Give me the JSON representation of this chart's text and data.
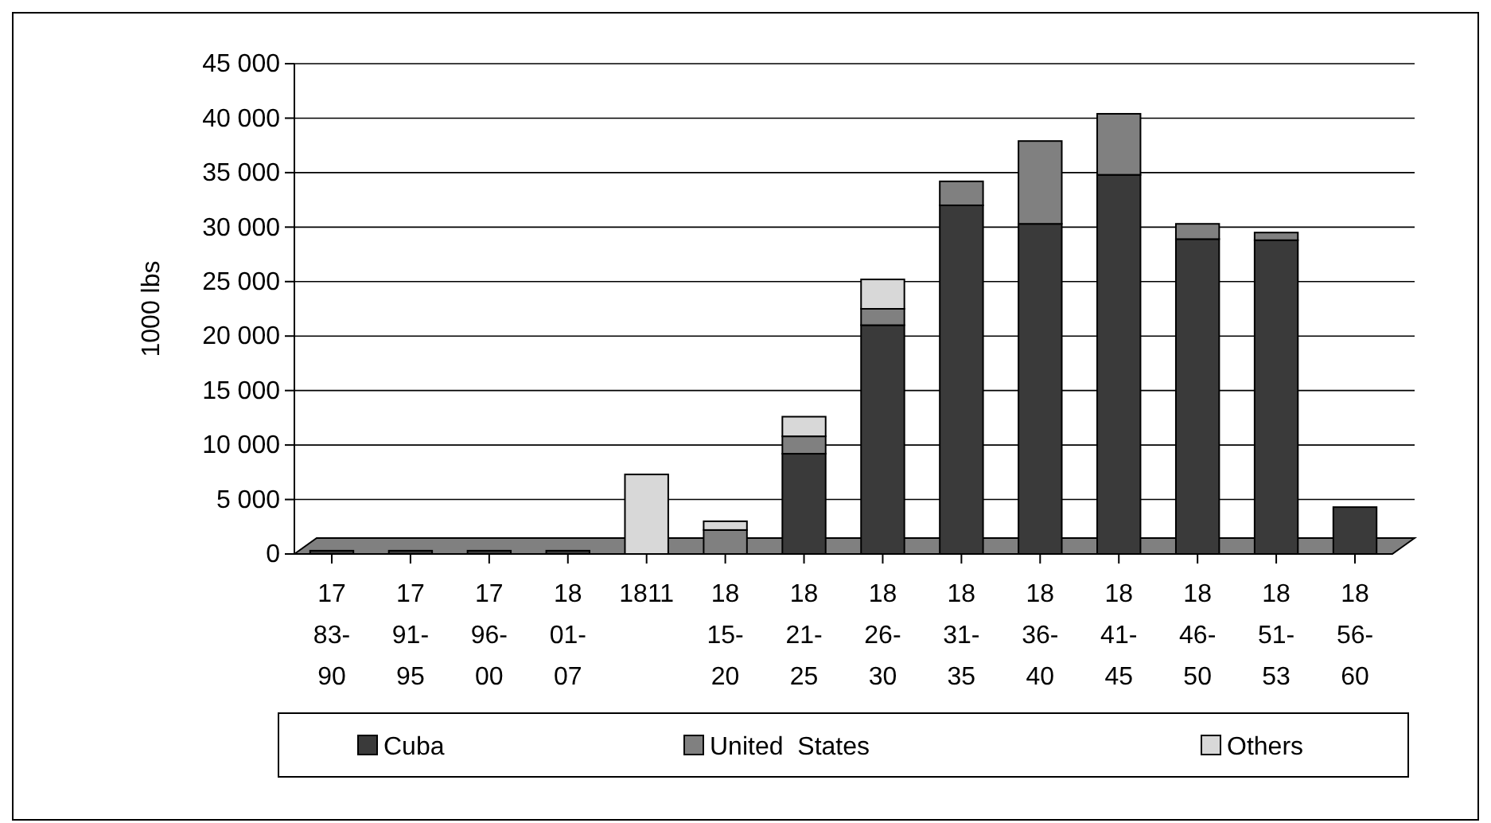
{
  "chart_data": {
    "type": "bar",
    "stacked": true,
    "ylabel": "1000 lbs",
    "categories": [
      "1783-90",
      "1791-95",
      "1796-00",
      "1801-07",
      "1811",
      "1815-20",
      "1821-25",
      "1826-30",
      "1831-35",
      "1836-40",
      "1841-45",
      "1846-50",
      "1851-53",
      "1856-60"
    ],
    "series": [
      {
        "name": "Cuba",
        "color": "#3a3a3a",
        "values": [
          300,
          300,
          300,
          300,
          0,
          0,
          9200,
          21000,
          32000,
          30300,
          34800,
          28900,
          28800,
          4300
        ]
      },
      {
        "name": "United  States",
        "color": "#808080",
        "values": [
          0,
          0,
          0,
          0,
          0,
          2200,
          1600,
          1500,
          2200,
          7600,
          5600,
          1400,
          700,
          0
        ]
      },
      {
        "name": "Others",
        "color": "#d8d8d8",
        "values": [
          0,
          0,
          0,
          0,
          7300,
          800,
          1800,
          2700,
          0,
          0,
          0,
          0,
          0,
          0
        ]
      }
    ],
    "ylim": [
      0,
      45000
    ],
    "yticks": [
      {
        "value": 0,
        "label": "0"
      },
      {
        "value": 5000,
        "label": "5 000"
      },
      {
        "value": 10000,
        "label": "10 000"
      },
      {
        "value": 15000,
        "label": "15 000"
      },
      {
        "value": 20000,
        "label": "20 000"
      },
      {
        "value": 25000,
        "label": "25 000"
      },
      {
        "value": 30000,
        "label": "30 000"
      },
      {
        "value": 35000,
        "label": "35 000"
      },
      {
        "value": 40000,
        "label": "40 000"
      },
      {
        "value": 45000,
        "label": "45 000"
      }
    ],
    "grid": "y",
    "legend": "bottom"
  }
}
